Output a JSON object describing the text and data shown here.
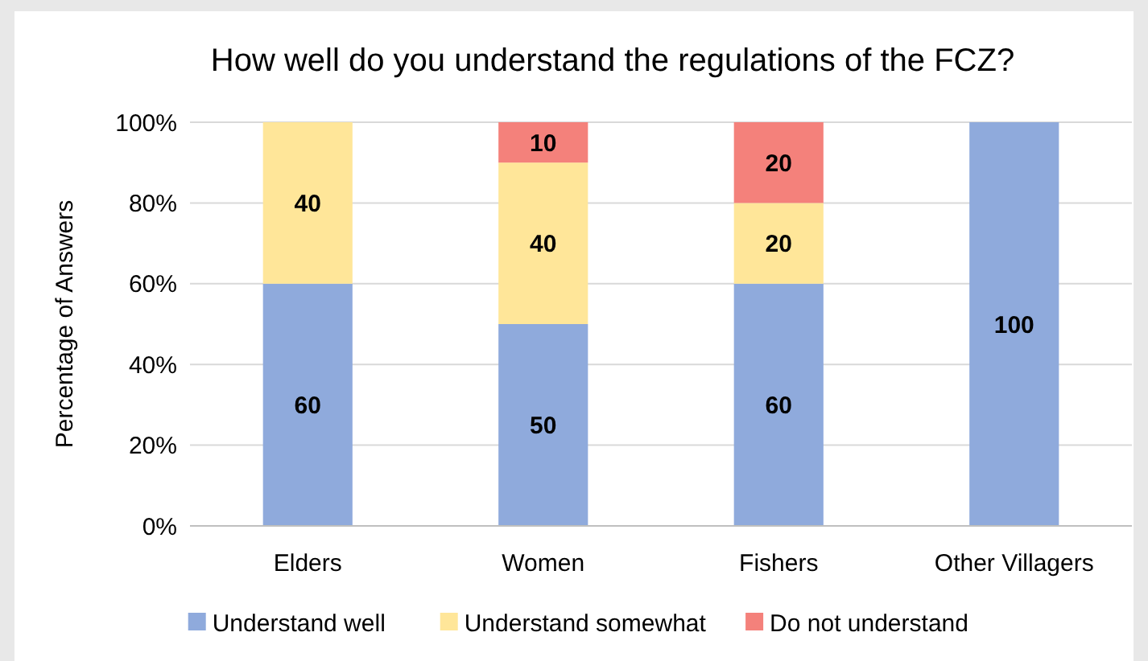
{
  "chart_data": {
    "type": "bar",
    "stacked": true,
    "title": "How well do you understand the regulations of the FCZ?",
    "ylabel": "Percentage of Answers",
    "categories": [
      "Elders",
      "Women",
      "Fishers",
      "Other Villagers"
    ],
    "series": [
      {
        "name": "Understand well",
        "color": "#8faadc",
        "values": [
          60,
          50,
          60,
          100
        ],
        "value_labels": [
          "60",
          "50",
          "60",
          "100"
        ]
      },
      {
        "name": "Understand somewhat",
        "color": "#ffe699",
        "values": [
          40,
          40,
          20,
          0
        ],
        "value_labels": [
          "40",
          "40",
          "20",
          null
        ]
      },
      {
        "name": "Do not understand",
        "color": "#f4817b",
        "values": [
          0,
          10,
          20,
          0
        ],
        "value_labels": [
          null,
          "10",
          "20",
          null
        ]
      }
    ],
    "ylim": [
      0,
      100
    ],
    "yticks": [
      {
        "value": 0,
        "label": "0%"
      },
      {
        "value": 20,
        "label": "20%"
      },
      {
        "value": 40,
        "label": "40%"
      },
      {
        "value": 60,
        "label": "60%"
      },
      {
        "value": 80,
        "label": "80%"
      },
      {
        "value": 100,
        "label": "100%"
      }
    ],
    "grid": "y",
    "legend": "bottom"
  }
}
